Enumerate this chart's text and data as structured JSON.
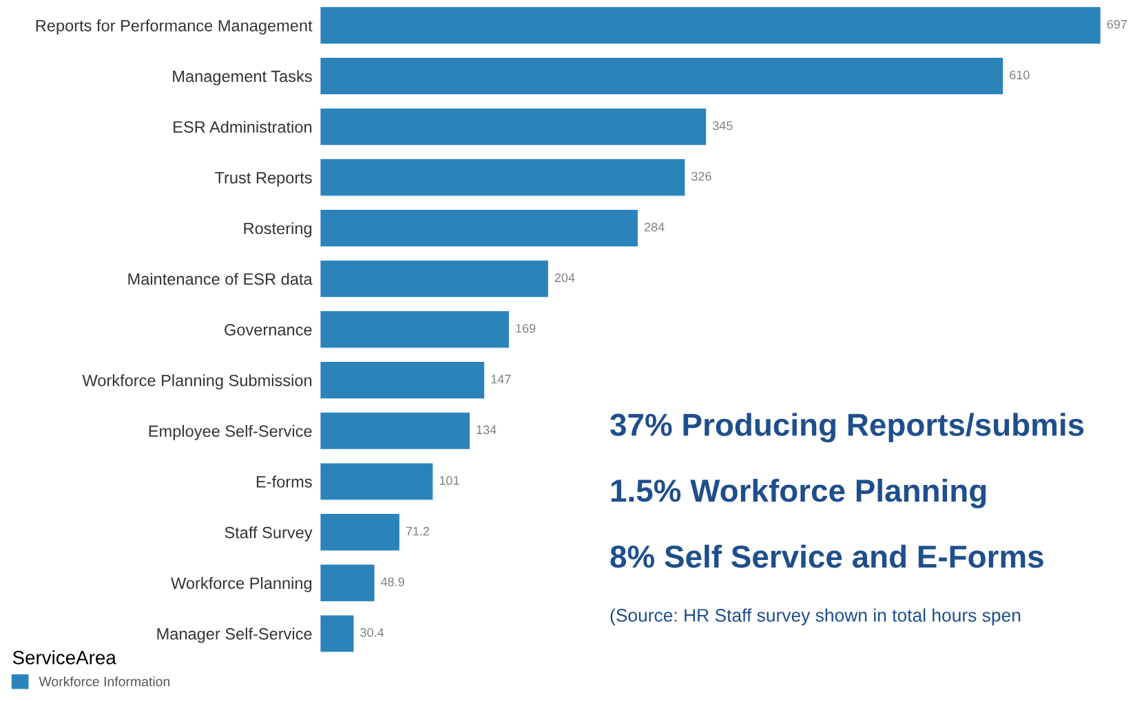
{
  "chart_data": {
    "type": "bar",
    "orientation": "horizontal",
    "data_labels": true,
    "legend": "bottom left",
    "legend_title": "ServiceArea",
    "categories": [
      "Reports for Performance Management",
      "Management Tasks",
      "ESR Administration",
      "Trust Reports",
      "Rostering",
      "Maintenance of ESR data",
      "Governance",
      "Workforce Planning Submission",
      "Employee Self-Service",
      "E-forms",
      "Staff Survey",
      "Workforce Planning",
      "Manager Self-Service"
    ],
    "series": [
      {
        "name": "Workforce Information",
        "color": "#2a84ba",
        "values": [
          697,
          610,
          345,
          326,
          284,
          204,
          169,
          147,
          134,
          101,
          71.2,
          48.9,
          30.4
        ]
      }
    ],
    "annotations": [
      "37% Producing Reports/submis",
      "1.5% Workforce Planning",
      "8% Self Service and E-Forms",
      "(Source: HR Staff survey shown in total hours spen"
    ]
  }
}
